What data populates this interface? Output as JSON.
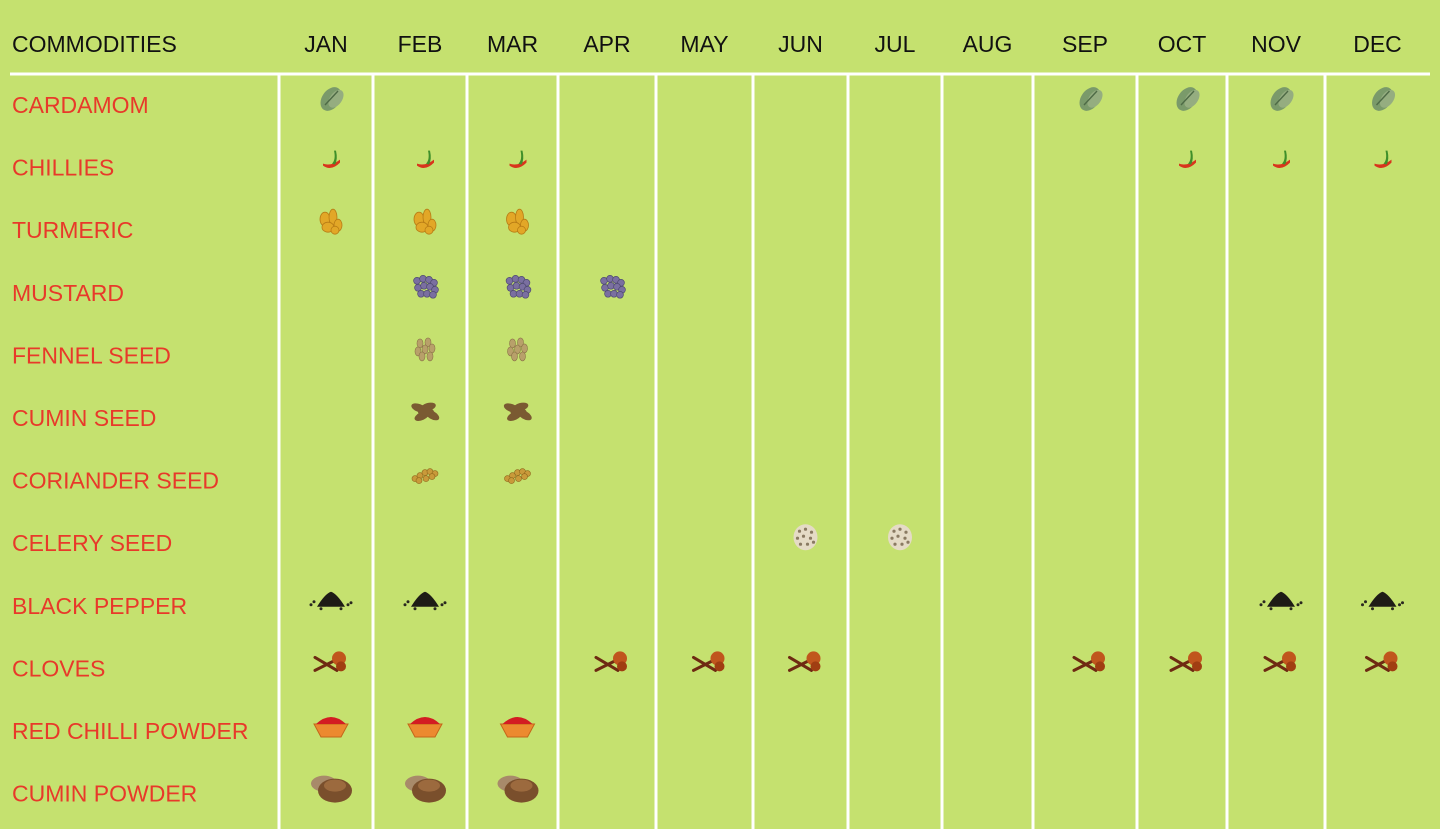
{
  "colors": {
    "background": "#c5e16f",
    "header_text": "#111111",
    "commodity_text": "#e8392a",
    "grid_lines": "#ffffff"
  },
  "chart_data": {
    "type": "table",
    "header_label": "COMMODITIES",
    "months": [
      "JAN",
      "FEB",
      "MAR",
      "APR",
      "MAY",
      "JUN",
      "JUL",
      "AUG",
      "SEP",
      "OCT",
      "NOV",
      "DEC"
    ],
    "commodities": [
      {
        "name": "CARDAMOM",
        "icon": "cardamom-icon",
        "months": [
          "JAN",
          "SEP",
          "OCT",
          "NOV",
          "DEC"
        ]
      },
      {
        "name": "CHILLIES",
        "icon": "chilli-icon",
        "months": [
          "JAN",
          "FEB",
          "MAR",
          "OCT",
          "NOV",
          "DEC"
        ]
      },
      {
        "name": "TURMERIC",
        "icon": "turmeric-icon",
        "months": [
          "JAN",
          "FEB",
          "MAR"
        ]
      },
      {
        "name": "MUSTARD",
        "icon": "mustard-icon",
        "months": [
          "FEB",
          "MAR",
          "APR"
        ]
      },
      {
        "name": "FENNEL SEED",
        "icon": "fennel-seed-icon",
        "months": [
          "FEB",
          "MAR"
        ]
      },
      {
        "name": "CUMIN SEED",
        "icon": "cumin-seed-icon",
        "months": [
          "FEB",
          "MAR"
        ]
      },
      {
        "name": "CORIANDER SEED",
        "icon": "coriander-seed-icon",
        "months": [
          "FEB",
          "MAR"
        ]
      },
      {
        "name": "CELERY SEED",
        "icon": "celery-seed-icon",
        "months": [
          "JUN",
          "JUL"
        ]
      },
      {
        "name": "BLACK PEPPER",
        "icon": "black-pepper-icon",
        "months": [
          "JAN",
          "FEB",
          "NOV",
          "DEC"
        ]
      },
      {
        "name": "CLOVES",
        "icon": "clove-icon",
        "months": [
          "JAN",
          "APR",
          "MAY",
          "JUN",
          "SEP",
          "OCT",
          "NOV",
          "DEC"
        ]
      },
      {
        "name": "RED CHILLI POWDER",
        "icon": "red-chilli-powder-icon",
        "months": [
          "JAN",
          "FEB",
          "MAR"
        ]
      },
      {
        "name": "CUMIN POWDER",
        "icon": "cumin-powder-icon",
        "months": [
          "JAN",
          "FEB",
          "MAR"
        ]
      }
    ]
  }
}
